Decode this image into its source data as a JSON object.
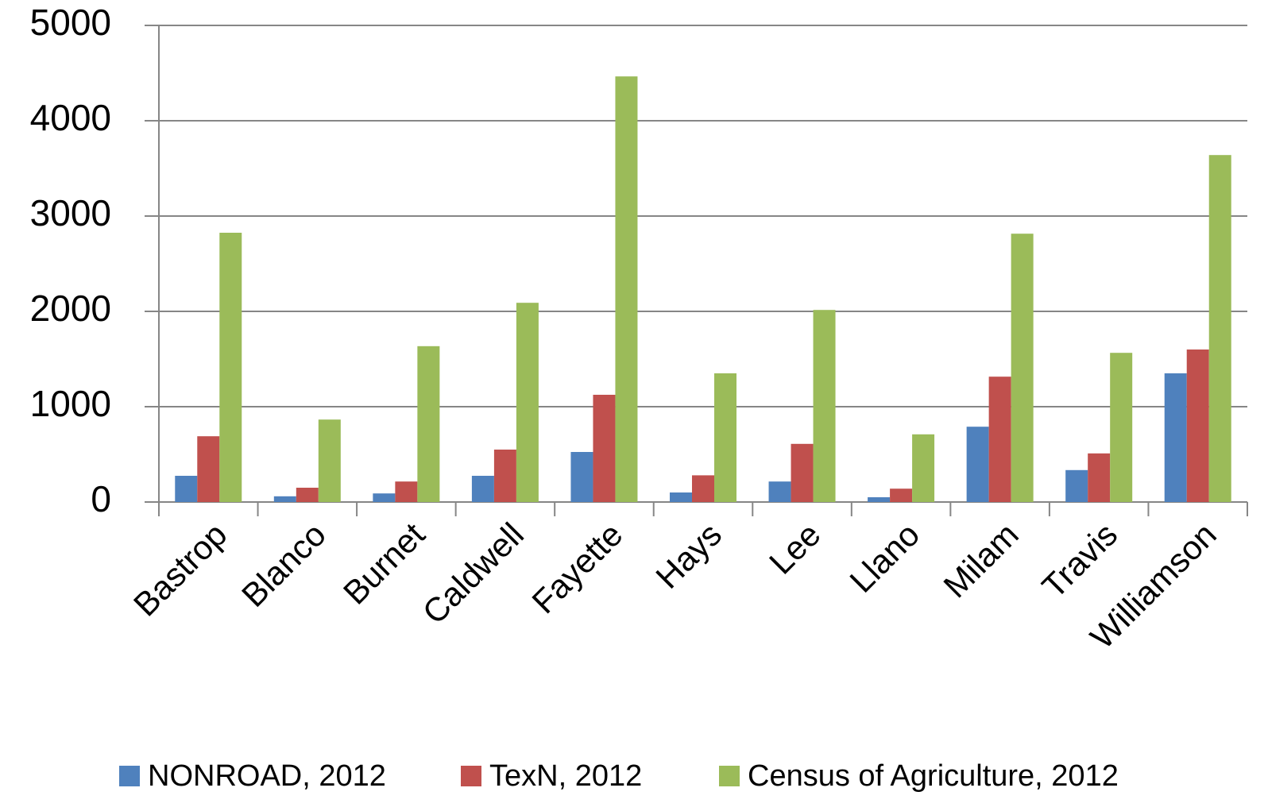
{
  "chart_data": {
    "type": "bar",
    "categories": [
      "Bastrop",
      "Blanco",
      "Burnet",
      "Caldwell",
      "Fayette",
      "Hays",
      "Lee",
      "Llano",
      "Milam",
      "Travis",
      "Williamson"
    ],
    "series": [
      {
        "name": "NONROAD, 2012",
        "color": "#4f81bd",
        "values": [
          275,
          60,
          90,
          275,
          525,
          100,
          215,
          50,
          790,
          335,
          1350
        ]
      },
      {
        "name": "TexN, 2012",
        "color": "#c0504d",
        "values": [
          690,
          150,
          215,
          550,
          1125,
          280,
          610,
          140,
          1315,
          510,
          1600
        ]
      },
      {
        "name": "Census of Agriculture, 2012",
        "color": "#9bbb59",
        "values": [
          2825,
          865,
          1635,
          2090,
          4465,
          1350,
          2015,
          710,
          2815,
          1565,
          3640
        ]
      }
    ],
    "ylim": [
      0,
      5000
    ],
    "yticks": [
      0,
      1000,
      2000,
      3000,
      4000,
      5000
    ],
    "grid": true,
    "legend": "bottom"
  }
}
